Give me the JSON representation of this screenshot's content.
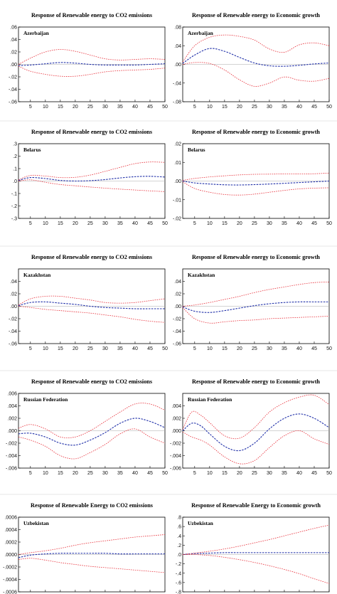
{
  "colors": {
    "response": "#1f2fa8",
    "band": "#e8323c"
  },
  "chart_data": [
    {
      "id": "az-co2",
      "type": "line",
      "title": "Response of Renewable energy to CO2 emissions",
      "country": "Azerbaijan",
      "ylim": [
        -0.06,
        0.06
      ],
      "yticks": [
        0.06,
        0.04,
        0.02,
        0.0,
        -0.02,
        -0.04,
        -0.06
      ],
      "yticklabels": [
        ".06",
        ".04",
        ".02",
        ".00",
        "-.02",
        "-.04",
        "-.06"
      ],
      "xlim": [
        1,
        50
      ],
      "xticks": [
        5,
        10,
        15,
        20,
        25,
        30,
        35,
        40,
        45,
        50
      ],
      "x": [
        1,
        5,
        10,
        15,
        20,
        25,
        30,
        35,
        40,
        45,
        50
      ],
      "series": [
        {
          "role": "response",
          "values": [
            -0.002,
            -0.001,
            0.001,
            0.003,
            0.002,
            0.0,
            -0.001,
            -0.001,
            -0.001,
            0.0,
            0.001
          ]
        },
        {
          "role": "upper",
          "values": [
            0.0,
            0.01,
            0.02,
            0.024,
            0.021,
            0.015,
            0.009,
            0.007,
            0.008,
            0.009,
            0.008
          ]
        },
        {
          "role": "lower",
          "values": [
            -0.003,
            -0.011,
            -0.016,
            -0.019,
            -0.019,
            -0.016,
            -0.012,
            -0.01,
            -0.009,
            -0.008,
            -0.006
          ]
        }
      ]
    },
    {
      "id": "az-gdp",
      "type": "line",
      "title": "Response of Renewable energy to Economic growth",
      "country": "Azerbaijan",
      "ylim": [
        -0.08,
        0.08
      ],
      "yticks": [
        0.08,
        0.04,
        0.0,
        -0.04,
        -0.08
      ],
      "yticklabels": [
        ".08",
        ".04",
        ".00",
        "-.04",
        "-.08"
      ],
      "xlim": [
        1,
        50
      ],
      "xticks": [
        5,
        10,
        15,
        20,
        25,
        30,
        35,
        40,
        45,
        50
      ],
      "x": [
        1,
        5,
        10,
        15,
        20,
        25,
        30,
        35,
        40,
        45,
        50
      ],
      "series": [
        {
          "role": "response",
          "values": [
            0.002,
            0.02,
            0.034,
            0.028,
            0.015,
            0.003,
            -0.003,
            -0.004,
            -0.002,
            0.001,
            0.003
          ]
        },
        {
          "role": "upper",
          "values": [
            0.005,
            0.04,
            0.058,
            0.063,
            0.06,
            0.052,
            0.033,
            0.026,
            0.042,
            0.046,
            0.04
          ]
        },
        {
          "role": "lower",
          "values": [
            0.0,
            0.004,
            0.002,
            -0.012,
            -0.033,
            -0.047,
            -0.04,
            -0.027,
            -0.034,
            -0.036,
            -0.03
          ]
        }
      ]
    },
    {
      "id": "by-co2",
      "type": "line",
      "title": "Response of Renewable energy to CO2 emissions",
      "country": "Belarus",
      "ylim": [
        -0.3,
        0.3
      ],
      "yticks": [
        0.3,
        0.2,
        0.1,
        0.0,
        -0.1,
        -0.2,
        -0.3
      ],
      "yticklabels": [
        ".3",
        ".2",
        ".1",
        ".0",
        "-.1",
        "-.2",
        "-.3"
      ],
      "xlim": [
        1,
        50
      ],
      "xticks": [
        5,
        10,
        15,
        20,
        25,
        30,
        35,
        40,
        45,
        50
      ],
      "x": [
        1,
        5,
        10,
        15,
        20,
        25,
        30,
        35,
        40,
        45,
        50
      ],
      "series": [
        {
          "role": "response",
          "values": [
            0.005,
            0.028,
            0.02,
            0.005,
            0.0,
            0.003,
            0.012,
            0.025,
            0.035,
            0.038,
            0.032
          ]
        },
        {
          "role": "upper",
          "values": [
            0.01,
            0.045,
            0.04,
            0.028,
            0.03,
            0.048,
            0.078,
            0.11,
            0.14,
            0.153,
            0.15
          ]
        },
        {
          "role": "lower",
          "values": [
            0.0,
            0.01,
            -0.01,
            -0.028,
            -0.038,
            -0.048,
            -0.057,
            -0.065,
            -0.072,
            -0.079,
            -0.085
          ]
        }
      ]
    },
    {
      "id": "by-gdp",
      "type": "line",
      "title": "Response of Renewable energy to Economic growth",
      "country": "Belarus",
      "ylim": [
        -0.02,
        0.02
      ],
      "yticks": [
        0.02,
        0.01,
        0.0,
        -0.01,
        -0.02
      ],
      "yticklabels": [
        ".02",
        ".01",
        ".00",
        "-.01",
        "-.02"
      ],
      "xlim": [
        1,
        50
      ],
      "xticks": [
        5,
        10,
        15,
        20,
        25,
        30,
        35,
        40,
        45,
        50
      ],
      "x": [
        1,
        5,
        10,
        15,
        20,
        25,
        30,
        35,
        40,
        45,
        50
      ],
      "series": [
        {
          "role": "response",
          "values": [
            0.0,
            -0.001,
            -0.0016,
            -0.002,
            -0.0021,
            -0.0019,
            -0.0016,
            -0.0012,
            -0.0008,
            -0.0004,
            0.0
          ]
        },
        {
          "role": "upper",
          "values": [
            0.0004,
            0.0014,
            0.0022,
            0.0028,
            0.0033,
            0.0036,
            0.0037,
            0.0038,
            0.0038,
            0.0039,
            0.0043
          ]
        },
        {
          "role": "lower",
          "values": [
            -0.0004,
            -0.004,
            -0.006,
            -0.0072,
            -0.0075,
            -0.007,
            -0.006,
            -0.005,
            -0.0042,
            -0.0038,
            -0.0036
          ]
        }
      ]
    },
    {
      "id": "kz-co2",
      "type": "line",
      "title": "Response of Renewable energy to CO2 emissions",
      "country": "Kazakhstan",
      "ylim": [
        -0.06,
        0.06
      ],
      "yticks": [
        0.04,
        0.02,
        0.0,
        -0.02,
        -0.04,
        -0.06
      ],
      "yticklabels": [
        ".04",
        ".02",
        ".00",
        "-.02",
        "-.04",
        "-.06"
      ],
      "xlim": [
        1,
        50
      ],
      "xticks": [
        5,
        10,
        15,
        20,
        25,
        30,
        35,
        40,
        45,
        50
      ],
      "x": [
        1,
        5,
        10,
        15,
        20,
        25,
        30,
        35,
        40,
        45,
        50
      ],
      "series": [
        {
          "role": "response",
          "values": [
            0.001,
            0.006,
            0.007,
            0.005,
            0.003,
            0.0,
            -0.002,
            -0.003,
            -0.004,
            -0.004,
            -0.004
          ]
        },
        {
          "role": "upper",
          "values": [
            0.002,
            0.012,
            0.016,
            0.016,
            0.013,
            0.01,
            0.006,
            0.005,
            0.006,
            0.009,
            0.012
          ]
        },
        {
          "role": "lower",
          "values": [
            0.0,
            -0.002,
            -0.005,
            -0.007,
            -0.009,
            -0.011,
            -0.014,
            -0.017,
            -0.021,
            -0.024,
            -0.026
          ]
        }
      ]
    },
    {
      "id": "kz-gdp",
      "type": "line",
      "title": "Response of Renewable energy to Economic growth",
      "country": "Kazakhstan",
      "ylim": [
        -0.06,
        0.06
      ],
      "yticks": [
        0.04,
        0.02,
        0.0,
        -0.02,
        -0.04,
        -0.06
      ],
      "yticklabels": [
        ".04",
        ".02",
        ".00",
        "-.02",
        "-.04",
        "-.06"
      ],
      "xlim": [
        1,
        50
      ],
      "xticks": [
        5,
        10,
        15,
        20,
        25,
        30,
        35,
        40,
        45,
        50
      ],
      "x": [
        1,
        5,
        10,
        15,
        20,
        25,
        30,
        35,
        40,
        45,
        50
      ],
      "series": [
        {
          "role": "response",
          "values": [
            -0.001,
            -0.008,
            -0.01,
            -0.007,
            -0.003,
            0.001,
            0.004,
            0.006,
            0.007,
            0.007,
            0.007
          ]
        },
        {
          "role": "upper",
          "values": [
            0.0,
            0.002,
            0.006,
            0.011,
            0.016,
            0.022,
            0.027,
            0.031,
            0.035,
            0.038,
            0.039
          ]
        },
        {
          "role": "lower",
          "values": [
            -0.002,
            -0.02,
            -0.027,
            -0.025,
            -0.023,
            -0.022,
            -0.02,
            -0.019,
            -0.018,
            -0.017,
            -0.016
          ]
        }
      ]
    },
    {
      "id": "ru-co2",
      "type": "line",
      "title": "Response of Renewable energy to CO2 emissions",
      "country": "Russian Federation",
      "ylim": [
        -0.006,
        0.006
      ],
      "yticks": [
        0.006,
        0.004,
        0.002,
        0.0,
        -0.002,
        -0.004,
        -0.006
      ],
      "yticklabels": [
        ".006",
        ".004",
        ".002",
        ".000",
        "-.002",
        "-.004",
        "-.006"
      ],
      "xlim": [
        1,
        50
      ],
      "xticks": [
        5,
        10,
        15,
        20,
        25,
        30,
        35,
        40,
        45,
        50
      ],
      "x": [
        1,
        5,
        10,
        15,
        20,
        25,
        30,
        35,
        40,
        45,
        50
      ],
      "series": [
        {
          "role": "response",
          "values": [
            -0.0005,
            -0.0004,
            -0.001,
            -0.002,
            -0.0023,
            -0.0015,
            -0.0003,
            0.0012,
            0.002,
            0.0015,
            0.0005
          ]
        },
        {
          "role": "upper",
          "values": [
            0.0004,
            0.001,
            0.0003,
            -0.001,
            -0.001,
            0.0,
            0.0015,
            0.003,
            0.0043,
            0.0043,
            0.0033
          ]
        },
        {
          "role": "lower",
          "values": [
            -0.001,
            -0.0015,
            -0.0025,
            -0.004,
            -0.0045,
            -0.0035,
            -0.0022,
            -0.0005,
            0.0003,
            -0.001,
            -0.002
          ]
        }
      ]
    },
    {
      "id": "ru-gdp",
      "type": "line",
      "title": "Response of Renewable energy to Economic growth",
      "country": "Russian Federation",
      "ylim": [
        -0.006,
        0.006
      ],
      "yticks": [
        0.004,
        0.002,
        0.0,
        -0.002,
        -0.004,
        -0.006
      ],
      "yticklabels": [
        ".004",
        ".002",
        ".000",
        "-.002",
        "-.004",
        "-.006"
      ],
      "xlim": [
        1,
        50
      ],
      "xticks": [
        5,
        10,
        15,
        20,
        25,
        30,
        35,
        40,
        45,
        50
      ],
      "x": [
        1,
        4,
        7,
        10,
        15,
        20,
        25,
        30,
        35,
        40,
        45,
        50
      ],
      "series": [
        {
          "role": "response",
          "values": [
            0.0,
            0.0012,
            0.0008,
            -0.0005,
            -0.0025,
            -0.0032,
            -0.002,
            0.0003,
            0.002,
            0.0027,
            0.002,
            0.0005
          ]
        },
        {
          "role": "upper",
          "values": [
            0.0002,
            0.003,
            0.0025,
            0.0013,
            -0.0008,
            -0.0012,
            0.0005,
            0.003,
            0.0045,
            0.0054,
            0.0057,
            0.0042
          ]
        },
        {
          "role": "lower",
          "values": [
            -0.0002,
            -0.001,
            -0.0015,
            -0.0023,
            -0.0042,
            -0.0053,
            -0.0048,
            -0.0027,
            -0.0008,
            0.0,
            -0.0013,
            -0.0022
          ]
        }
      ]
    },
    {
      "id": "uz-co2",
      "type": "line",
      "title": "Response of Renewable Energy to CO2 emissions",
      "country": "Uzbekistan",
      "ylim": [
        -0.0006,
        0.0006
      ],
      "yticks": [
        0.0006,
        0.0004,
        0.0002,
        0.0,
        -0.0002,
        -0.0004,
        -0.0006
      ],
      "yticklabels": [
        ".0006",
        ".0004",
        ".0002",
        ".0000",
        "-.0002",
        "-.0004",
        "-.0006"
      ],
      "xlim": [
        1,
        50
      ],
      "xticks": [
        5,
        10,
        15,
        20,
        25,
        30,
        35,
        40,
        45,
        50
      ],
      "x": [
        1,
        5,
        10,
        15,
        20,
        25,
        30,
        35,
        40,
        45,
        50
      ],
      "series": [
        {
          "role": "response",
          "values": [
            -5e-05,
            -1e-05,
            1e-05,
            2e-05,
            2e-05,
            2e-05,
            2e-05,
            1e-05,
            1e-05,
            1e-05,
            1e-05
          ]
        },
        {
          "role": "upper",
          "values": [
            0.0,
            3e-05,
            6e-05,
            0.0001,
            0.00015,
            0.00019,
            0.00022,
            0.00025,
            0.00028,
            0.0003,
            0.00032
          ]
        },
        {
          "role": "lower",
          "values": [
            -8e-05,
            -6e-05,
            -9e-05,
            -0.00013,
            -0.00016,
            -0.00019,
            -0.00021,
            -0.00023,
            -0.00025,
            -0.00027,
            -0.00029
          ]
        }
      ]
    },
    {
      "id": "uz-gdp",
      "type": "line",
      "title": "Response of Renewable Energy to Economic growth",
      "country": "Uzbekistan",
      "ylim": [
        -0.8,
        0.8
      ],
      "yticks": [
        0.8,
        0.6,
        0.4,
        0.2,
        0.0,
        -0.2,
        -0.4,
        -0.6,
        -0.8
      ],
      "yticklabels": [
        ".8",
        ".6",
        ".4",
        ".2",
        ".0",
        "-.2",
        "-.4",
        "-.6",
        "-.8"
      ],
      "xlim": [
        1,
        50
      ],
      "xticks": [
        5,
        10,
        15,
        20,
        25,
        30,
        35,
        40,
        45,
        50
      ],
      "x": [
        1,
        5,
        10,
        15,
        20,
        25,
        30,
        35,
        40,
        45,
        50
      ],
      "series": [
        {
          "role": "response",
          "values": [
            0.0,
            0.02,
            0.03,
            0.04,
            0.04,
            0.04,
            0.04,
            0.04,
            0.04,
            0.04,
            0.04
          ]
        },
        {
          "role": "upper",
          "values": [
            0.0,
            0.03,
            0.07,
            0.12,
            0.18,
            0.25,
            0.32,
            0.4,
            0.48,
            0.56,
            0.63
          ]
        },
        {
          "role": "lower",
          "values": [
            0.0,
            0.0,
            -0.02,
            -0.06,
            -0.11,
            -0.17,
            -0.24,
            -0.32,
            -0.41,
            -0.52,
            -0.62
          ]
        }
      ]
    }
  ]
}
